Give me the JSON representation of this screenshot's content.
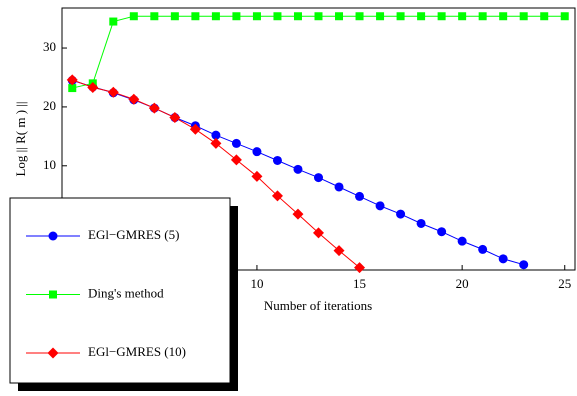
{
  "chart_data": {
    "type": "line",
    "xlabel": "Number of iterations",
    "ylabel": "Log || R( m ) ||",
    "xlim": [
      0.5,
      25.5
    ],
    "ylim": [
      -7.7,
      36.8
    ],
    "xticks": [
      10,
      15,
      20,
      25
    ],
    "yticks": [
      10,
      20,
      30
    ],
    "legend": "bottom-left",
    "series": [
      {
        "name": "EGl−GMRES (5)",
        "color": "#0000ff",
        "marker": "circle",
        "x": [
          1,
          2,
          3,
          4,
          5,
          6,
          7,
          8,
          9,
          10,
          11,
          12,
          13,
          14,
          15,
          16,
          17,
          18,
          19,
          20,
          21,
          22,
          23
        ],
        "values": [
          24.5,
          23.4,
          22.4,
          21.2,
          19.8,
          18.2,
          16.8,
          15.2,
          13.8,
          12.4,
          10.9,
          9.4,
          8.0,
          6.4,
          4.8,
          3.2,
          1.8,
          0.2,
          -1.2,
          -2.8,
          -4.2,
          -5.8,
          -6.8
        ]
      },
      {
        "name": "Ding's method",
        "color": "#00ff00",
        "marker": "square",
        "x": [
          1,
          2,
          3,
          4,
          5,
          6,
          7,
          8,
          9,
          10,
          11,
          12,
          13,
          14,
          15,
          16,
          17,
          18,
          19,
          20,
          21,
          22,
          23,
          24,
          25
        ],
        "values": [
          23.2,
          24.0,
          34.5,
          35.4,
          35.4,
          35.4,
          35.4,
          35.4,
          35.4,
          35.4,
          35.4,
          35.4,
          35.4,
          35.4,
          35.4,
          35.4,
          35.4,
          35.4,
          35.4,
          35.4,
          35.4,
          35.4,
          35.4,
          35.4,
          35.4
        ]
      },
      {
        "name": "EGl−GMRES (10)",
        "color": "#ff0000",
        "marker": "diamond",
        "x": [
          1,
          2,
          3,
          4,
          5,
          6,
          7,
          8,
          9,
          10,
          11,
          12,
          13,
          14,
          15
        ],
        "values": [
          24.6,
          23.3,
          22.5,
          21.3,
          19.8,
          18.2,
          16.2,
          13.8,
          11.0,
          8.2,
          4.9,
          1.8,
          -1.4,
          -4.4,
          -7.3
        ]
      }
    ]
  }
}
